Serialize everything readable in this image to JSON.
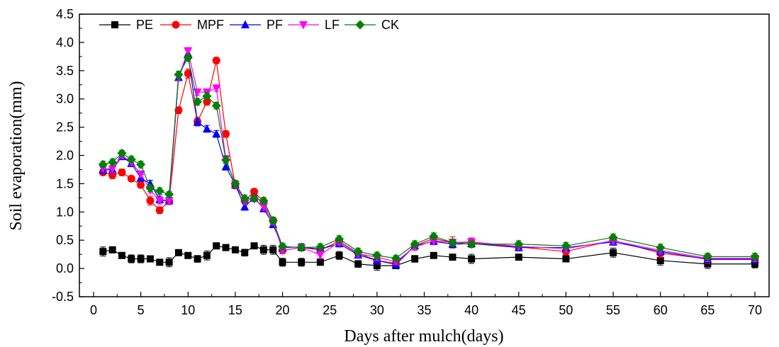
{
  "chart_data": {
    "type": "line",
    "xlabel": "Days after mulch(days)",
    "ylabel": "Soil evaporation(mm)",
    "xlim": [
      -1.5,
      71.5
    ],
    "ylim": [
      -0.5,
      4.5
    ],
    "x_ticks": [
      0,
      5,
      10,
      15,
      20,
      25,
      30,
      35,
      40,
      45,
      50,
      55,
      60,
      65,
      70
    ],
    "y_ticks": [
      -0.5,
      0.0,
      0.5,
      1.0,
      1.5,
      2.0,
      2.5,
      3.0,
      3.5,
      4.0,
      4.5
    ],
    "error_bars": true,
    "legend_position": "top-left",
    "x": [
      1,
      2,
      3,
      4,
      5,
      6,
      7,
      8,
      9,
      10,
      11,
      12,
      13,
      14,
      15,
      16,
      17,
      18,
      19,
      20,
      22,
      24,
      26,
      28,
      30,
      32,
      34,
      36,
      38,
      40,
      45,
      50,
      55,
      60,
      65,
      70
    ],
    "series": [
      {
        "name": "PE",
        "color": "#000000",
        "marker": "square",
        "values": [
          0.3,
          0.33,
          0.23,
          0.17,
          0.17,
          0.17,
          0.11,
          0.11,
          0.28,
          0.23,
          0.17,
          0.23,
          0.4,
          0.37,
          0.33,
          0.28,
          0.4,
          0.33,
          0.33,
          0.11,
          0.11,
          0.11,
          0.23,
          0.08,
          0.05,
          0.05,
          0.17,
          0.23,
          0.2,
          0.17,
          0.2,
          0.17,
          0.28,
          0.14,
          0.08,
          0.08
        ],
        "errors": [
          0.08,
          0.04,
          0.04,
          0.07,
          0.07,
          0.05,
          0.05,
          0.08,
          0.05,
          0.05,
          0.06,
          0.08,
          0.05,
          0.05,
          0.04,
          0.06,
          0.05,
          0.08,
          0.08,
          0.07,
          0.07,
          0.04,
          0.07,
          0.06,
          0.08,
          0.04,
          0.06,
          0.04,
          0.05,
          0.08,
          0.05,
          0.05,
          0.08,
          0.08,
          0.08,
          0.07
        ]
      },
      {
        "name": "MPF",
        "color": "#ff0000",
        "marker": "circle",
        "values": [
          1.7,
          1.65,
          1.7,
          1.59,
          1.48,
          1.2,
          1.03,
          1.19,
          2.8,
          3.45,
          2.6,
          2.95,
          3.68,
          2.38,
          1.47,
          1.2,
          1.36,
          1.18,
          0.84,
          0.32,
          0.37,
          0.33,
          0.48,
          0.27,
          0.14,
          0.09,
          0.4,
          0.53,
          0.46,
          0.46,
          0.38,
          0.3,
          0.5,
          0.27,
          0.17,
          0.17
        ],
        "errors": [
          0.05,
          0.06,
          0.06,
          0.05,
          0.06,
          0.08,
          0.06,
          0.06,
          0.06,
          0.08,
          0.08,
          0.06,
          0.05,
          0.06,
          0.06,
          0.06,
          0.05,
          0.06,
          0.06,
          0.06,
          0.06,
          0.06,
          0.07,
          0.06,
          0.06,
          0.06,
          0.06,
          0.06,
          0.1,
          0.08,
          0.06,
          0.06,
          0.08,
          0.08,
          0.08,
          0.06
        ]
      },
      {
        "name": "PF",
        "color": "#0000ff",
        "marker": "triangle-up",
        "values": [
          1.74,
          1.75,
          1.98,
          1.86,
          1.6,
          1.5,
          1.22,
          1.2,
          3.38,
          3.8,
          2.59,
          2.47,
          2.38,
          1.8,
          1.48,
          1.09,
          1.25,
          1.06,
          0.78,
          0.37,
          0.38,
          0.34,
          0.44,
          0.24,
          0.14,
          0.07,
          0.4,
          0.48,
          0.43,
          0.44,
          0.37,
          0.37,
          0.47,
          0.3,
          0.16,
          0.16
        ],
        "errors": [
          0.06,
          0.06,
          0.05,
          0.06,
          0.06,
          0.06,
          0.06,
          0.05,
          0.06,
          0.06,
          0.06,
          0.06,
          0.06,
          0.06,
          0.06,
          0.06,
          0.05,
          0.06,
          0.06,
          0.06,
          0.06,
          0.06,
          0.06,
          0.06,
          0.06,
          0.05,
          0.06,
          0.06,
          0.06,
          0.06,
          0.06,
          0.06,
          0.06,
          0.06,
          0.06,
          0.06
        ]
      },
      {
        "name": "LF",
        "color": "#ff00ff",
        "marker": "triangle-down",
        "values": [
          1.77,
          1.76,
          2.0,
          1.88,
          1.67,
          1.39,
          1.2,
          1.2,
          3.39,
          3.85,
          3.12,
          3.12,
          3.19,
          1.94,
          1.49,
          1.2,
          1.23,
          1.09,
          0.83,
          0.32,
          0.37,
          0.24,
          0.47,
          0.26,
          0.2,
          0.12,
          0.38,
          0.49,
          0.46,
          0.47,
          0.39,
          0.35,
          0.49,
          0.32,
          0.18,
          0.18
        ],
        "errors": [
          0.06,
          0.06,
          0.05,
          0.06,
          0.06,
          0.06,
          0.06,
          0.05,
          0.06,
          0.06,
          0.06,
          0.06,
          0.06,
          0.06,
          0.06,
          0.06,
          0.05,
          0.06,
          0.06,
          0.06,
          0.06,
          0.06,
          0.06,
          0.06,
          0.06,
          0.05,
          0.06,
          0.06,
          0.06,
          0.06,
          0.06,
          0.06,
          0.06,
          0.06,
          0.06,
          0.06
        ]
      },
      {
        "name": "CK",
        "color": "#008000",
        "marker": "diamond",
        "values": [
          1.84,
          1.88,
          2.04,
          1.93,
          1.84,
          1.42,
          1.37,
          1.31,
          3.43,
          3.73,
          2.95,
          3.05,
          2.88,
          1.92,
          1.5,
          1.24,
          1.24,
          1.2,
          0.85,
          0.39,
          0.37,
          0.38,
          0.52,
          0.3,
          0.23,
          0.18,
          0.43,
          0.57,
          0.46,
          0.43,
          0.43,
          0.4,
          0.55,
          0.37,
          0.21,
          0.21
        ],
        "errors": [
          0.06,
          0.06,
          0.05,
          0.06,
          0.06,
          0.06,
          0.06,
          0.05,
          0.06,
          0.06,
          0.06,
          0.06,
          0.06,
          0.06,
          0.06,
          0.06,
          0.05,
          0.06,
          0.06,
          0.06,
          0.06,
          0.06,
          0.06,
          0.06,
          0.06,
          0.05,
          0.06,
          0.06,
          0.06,
          0.06,
          0.06,
          0.06,
          0.06,
          0.06,
          0.06,
          0.06
        ]
      }
    ]
  }
}
